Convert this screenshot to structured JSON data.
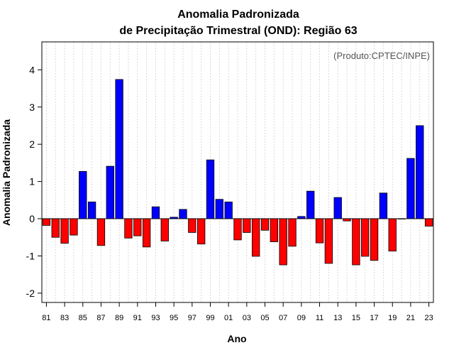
{
  "chart_data": {
    "type": "bar",
    "title": "Anomalia Padronizada",
    "subtitle": "de Precipitação Trimestral (OND): Região 63",
    "xlabel": "Ano",
    "ylabel": "Anomalia Padronizada",
    "credit": "(Produto:CPTEC/INPE)",
    "ylim": [
      -2.25,
      4.75
    ],
    "yticks": [
      -2,
      -1,
      0,
      1,
      2,
      3,
      4
    ],
    "xtick_labels": [
      "81",
      "83",
      "85",
      "87",
      "89",
      "91",
      "93",
      "95",
      "97",
      "99",
      "01",
      "03",
      "05",
      "07",
      "09",
      "11",
      "13",
      "15",
      "17",
      "19",
      "21",
      "23"
    ],
    "categories": [
      "1981",
      "1982",
      "1983",
      "1984",
      "1985",
      "1986",
      "1987",
      "1988",
      "1989",
      "1990",
      "1991",
      "1992",
      "1993",
      "1994",
      "1995",
      "1996",
      "1997",
      "1998",
      "1999",
      "2000",
      "2001",
      "2002",
      "2003",
      "2004",
      "2005",
      "2006",
      "2007",
      "2008",
      "2009",
      "2010",
      "2011",
      "2012",
      "2013",
      "2014",
      "2015",
      "2016",
      "2017",
      "2018",
      "2019",
      "2020",
      "2021",
      "2022",
      "2023"
    ],
    "values": [
      -0.18,
      -0.5,
      -0.66,
      -0.44,
      1.27,
      0.45,
      -0.72,
      1.41,
      3.74,
      -0.52,
      -0.46,
      -0.76,
      0.32,
      -0.6,
      0.04,
      0.25,
      -0.37,
      -0.68,
      1.58,
      0.52,
      0.45,
      -0.57,
      -0.37,
      -1.01,
      -0.31,
      -0.62,
      -1.24,
      -0.74,
      0.06,
      0.74,
      -0.65,
      -1.2,
      0.57,
      -0.06,
      -1.24,
      -1.01,
      -1.12,
      0.69,
      -0.87,
      0.0,
      1.62,
      2.5,
      -0.2
    ],
    "grid": true,
    "colors": {
      "positive": "#0000ff",
      "negative": "#ff0000",
      "edge": "#000000",
      "grid": "#d0d0d0"
    }
  }
}
